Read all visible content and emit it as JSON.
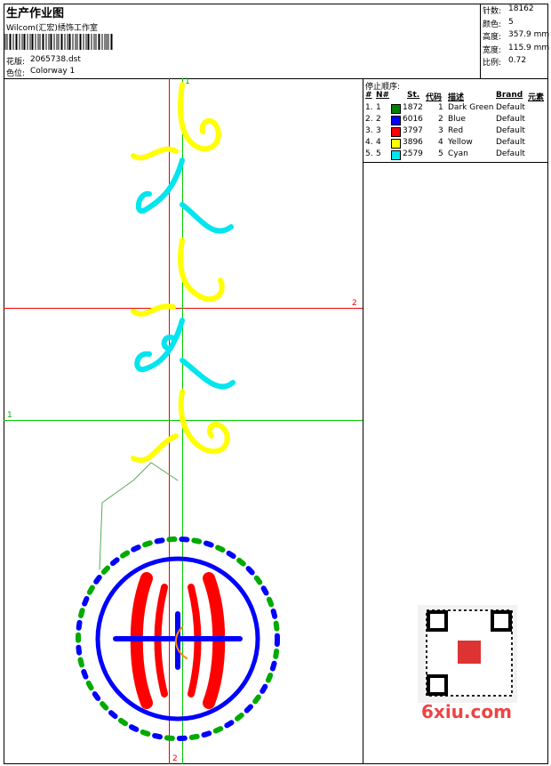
{
  "header": {
    "title": "生产作业图",
    "studio": "Wilcom(汇宏)绣饰工作室",
    "design_label": "花版:",
    "design": "2065738.dst",
    "colorway_label": "色位:",
    "colorway": "Colorway 1"
  },
  "stats": [
    {
      "label": "针数:",
      "value": "18162"
    },
    {
      "label": "颜色:",
      "value": "5"
    },
    {
      "label": "高度:",
      "value": "357.9 mm"
    },
    {
      "label": "宽度:",
      "value": "115.9 mm"
    },
    {
      "label": "比例:",
      "value": "0.72"
    }
  ],
  "stop_sequence": {
    "title": "停止顺序:",
    "columns": [
      "#",
      "N#",
      "St.",
      "代码",
      "描述",
      "Brand",
      "元素"
    ],
    "rows": [
      {
        "num": "1.",
        "n": "1",
        "color": "#008000",
        "stitches": "1872",
        "code": "1",
        "description": "Dark Green",
        "brand": "Default"
      },
      {
        "num": "2.",
        "n": "2",
        "color": "#0000ff",
        "stitches": "6016",
        "code": "2",
        "description": "Blue",
        "brand": "Default"
      },
      {
        "num": "3.",
        "n": "3",
        "color": "#ff0000",
        "stitches": "3797",
        "code": "3",
        "description": "Red",
        "brand": "Default"
      },
      {
        "num": "4.",
        "n": "4",
        "color": "#ffff00",
        "stitches": "3896",
        "code": "4",
        "description": "Yellow",
        "brand": "Default"
      },
      {
        "num": "5.",
        "n": "5",
        "color": "#00e5ee",
        "stitches": "2579",
        "code": "5",
        "description": "Cyan",
        "brand": "Default"
      }
    ]
  },
  "guides": [
    "1",
    "2",
    "1",
    "2"
  ],
  "watermark": "6xiu.com"
}
